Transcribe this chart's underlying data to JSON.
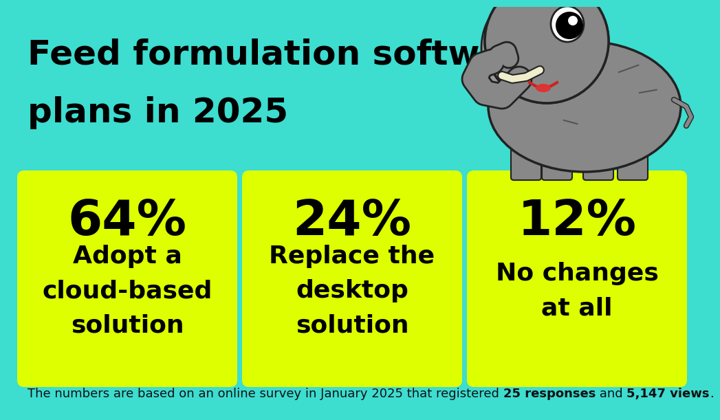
{
  "background_color": "#3DDDD0",
  "title_line1": "Feed formulation software",
  "title_line2": "plans in 2025",
  "title_fontsize": 36,
  "title_color": "#000000",
  "title_fontweight": "bold",
  "box_color": "#DDFF00",
  "boxes": [
    {
      "percent": "64%",
      "label": "Adopt a\ncloud-based\nsolution"
    },
    {
      "percent": "24%",
      "label": "Replace the\ndesktop\nsolution"
    },
    {
      "percent": "12%",
      "label": "No changes\nat all"
    }
  ],
  "percent_fontsize": 52,
  "label_fontsize": 26,
  "box_text_color": "#000000",
  "footer_parts": [
    {
      "text": "The numbers are based on an online survey in January 2025 that registered ",
      "bold": false
    },
    {
      "text": "25 responses",
      "bold": true
    },
    {
      "text": " and ",
      "bold": false
    },
    {
      "text": "5,147 views",
      "bold": true
    },
    {
      "text": ".",
      "bold": false
    }
  ],
  "footer_fontsize": 13,
  "footer_color": "#111111",
  "elephant_body_color": "#888888",
  "elephant_light_color": "#999999",
  "elephant_outline_color": "#222222"
}
